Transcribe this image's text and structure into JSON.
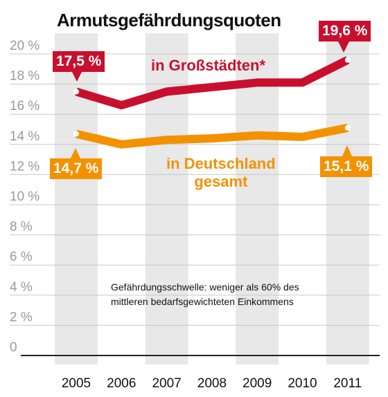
{
  "chart_data": {
    "type": "line",
    "title": "Armutsgefährdungsquoten",
    "x": [
      "2005",
      "2006",
      "2007",
      "2008",
      "2009",
      "2010",
      "2011"
    ],
    "ylim": [
      0,
      20
    ],
    "yticks": [
      "0",
      "2 %",
      "4 %",
      "6 %",
      "8 %",
      "10 %",
      "12 %",
      "14 %",
      "16 %",
      "18 %",
      "20 %"
    ],
    "grid": true,
    "series": [
      {
        "name": "in Großstädten*",
        "color": "#c8102e",
        "values": [
          17.5,
          16.6,
          17.5,
          17.8,
          18.1,
          18.1,
          19.6
        ],
        "start_label": "17,5 %",
        "end_label": "19,6 %"
      },
      {
        "name": "in Deutschland gesamt",
        "color": "#f39200",
        "values": [
          14.7,
          14.0,
          14.3,
          14.4,
          14.6,
          14.5,
          15.1
        ],
        "start_label": "14,7 %",
        "end_label": "15,1 %"
      }
    ],
    "annotation": "Gefährdungsschwelle: weniger als 60% des mittleren bedarfsgewichteten Einkommens"
  },
  "labels": {
    "series_big_city": "in Großstädten*",
    "series_germany_line1": "in Deutschland",
    "series_germany_line2": "gesamt",
    "note_line1": "Gefährdungsschwelle: weniger als 60% des",
    "note_line2": "mittleren bedarfsgewichteten Einkommens"
  }
}
